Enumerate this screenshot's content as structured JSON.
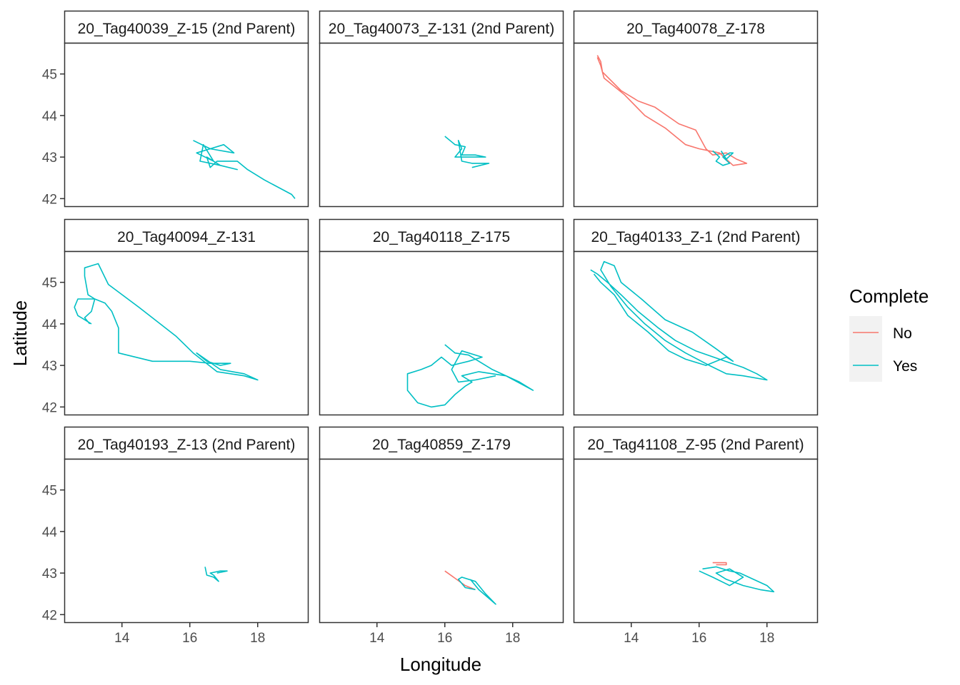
{
  "chart_data": {
    "type": "line",
    "facet_layout": "3x3",
    "xlabel": "Longitude",
    "ylabel": "Latitude",
    "xlim": [
      12.3,
      19.5
    ],
    "ylim": [
      41.8,
      45.75
    ],
    "x_ticks": [
      14,
      16,
      18
    ],
    "y_ticks": [
      42,
      43,
      44,
      45
    ],
    "grid": false,
    "legend": {
      "title": "Complete",
      "placement": "right",
      "entries": [
        {
          "label": "No",
          "color": "#F8766D"
        },
        {
          "label": "Yes",
          "color": "#00BFC4"
        }
      ]
    },
    "panels": [
      {
        "title": "20_Tag40039_Z-15 (2nd Parent)",
        "series": [
          {
            "name": "Yes",
            "points": [
              [
                16.1,
                43.4
              ],
              [
                16.6,
                43.2
              ],
              [
                17.0,
                43.3
              ],
              [
                17.3,
                43.1
              ],
              [
                16.6,
                43.2
              ],
              [
                16.2,
                43.1
              ],
              [
                16.7,
                42.9
              ],
              [
                16.4,
                43.3
              ],
              [
                16.3,
                42.9
              ],
              [
                16.9,
                42.8
              ],
              [
                17.4,
                42.7
              ],
              [
                16.9,
                42.8
              ],
              [
                16.5,
                43.0
              ],
              [
                16.6,
                42.75
              ],
              [
                16.8,
                42.9
              ],
              [
                17.4,
                42.9
              ],
              [
                17.7,
                42.7
              ],
              [
                18.2,
                42.45
              ],
              [
                19.0,
                42.1
              ],
              [
                19.1,
                42.0
              ]
            ]
          }
        ]
      },
      {
        "title": "20_Tag40073_Z-131 (2nd Parent)",
        "series": [
          {
            "name": "Yes",
            "points": [
              [
                16.0,
                43.5
              ],
              [
                16.3,
                43.3
              ],
              [
                16.6,
                43.25
              ],
              [
                16.5,
                43.05
              ],
              [
                16.9,
                43.05
              ],
              [
                17.2,
                43.0
              ],
              [
                16.7,
                43.0
              ],
              [
                16.3,
                43.0
              ],
              [
                16.5,
                43.2
              ],
              [
                16.4,
                43.4
              ],
              [
                16.5,
                42.9
              ],
              [
                16.8,
                42.85
              ],
              [
                17.0,
                42.85
              ],
              [
                17.3,
                42.85
              ],
              [
                16.8,
                42.75
              ]
            ]
          }
        ]
      },
      {
        "title": "20_Tag40078_Z-178",
        "series": [
          {
            "name": "No",
            "points": [
              [
                13.0,
                45.45
              ],
              [
                13.1,
                45.3
              ],
              [
                13.15,
                45.05
              ],
              [
                13.7,
                44.6
              ],
              [
                14.2,
                44.35
              ],
              [
                14.7,
                44.2
              ],
              [
                15.4,
                43.8
              ],
              [
                15.9,
                43.65
              ],
              [
                16.2,
                43.2
              ],
              [
                16.4,
                43.05
              ],
              [
                16.8,
                43.1
              ],
              [
                17.1,
                42.95
              ],
              [
                17.4,
                42.85
              ],
              [
                17.0,
                42.8
              ],
              [
                16.6,
                43.1
              ],
              [
                16.0,
                43.2
              ],
              [
                15.6,
                43.3
              ],
              [
                15.0,
                43.7
              ],
              [
                14.4,
                44.0
              ],
              [
                13.8,
                44.5
              ],
              [
                13.2,
                44.9
              ],
              [
                13.1,
                45.2
              ],
              [
                13.0,
                45.4
              ]
            ]
          },
          {
            "name": "Yes",
            "points": [
              [
                16.4,
                43.15
              ],
              [
                16.6,
                43.0
              ],
              [
                16.5,
                42.9
              ],
              [
                16.7,
                42.8
              ],
              [
                16.9,
                42.85
              ],
              [
                16.7,
                43.0
              ],
              [
                16.9,
                43.1
              ],
              [
                17.0,
                43.1
              ],
              [
                16.8,
                42.95
              ],
              [
                16.65,
                43.15
              ]
            ]
          }
        ]
      },
      {
        "title": "20_Tag40094_Z-131",
        "series": [
          {
            "name": "Yes",
            "points": [
              [
                13.1,
                44.0
              ],
              [
                12.9,
                44.1
              ],
              [
                12.7,
                44.2
              ],
              [
                12.6,
                44.4
              ],
              [
                12.7,
                44.6
              ],
              [
                13.2,
                44.6
              ],
              [
                13.5,
                44.5
              ],
              [
                13.7,
                44.3
              ],
              [
                13.9,
                43.9
              ],
              [
                13.9,
                43.6
              ],
              [
                13.9,
                43.3
              ],
              [
                14.9,
                43.1
              ],
              [
                16.0,
                43.1
              ],
              [
                16.6,
                43.05
              ],
              [
                17.2,
                43.05
              ],
              [
                16.9,
                43.0
              ],
              [
                16.5,
                43.1
              ],
              [
                16.2,
                43.3
              ],
              [
                16.9,
                42.9
              ],
              [
                17.6,
                42.8
              ],
              [
                18.0,
                42.65
              ],
              [
                17.6,
                42.75
              ],
              [
                16.8,
                42.85
              ],
              [
                16.1,
                43.3
              ],
              [
                15.6,
                43.7
              ],
              [
                14.5,
                44.4
              ],
              [
                13.6,
                44.95
              ],
              [
                13.3,
                45.45
              ],
              [
                12.9,
                45.35
              ],
              [
                12.9,
                45.15
              ],
              [
                13.0,
                44.7
              ],
              [
                13.2,
                44.6
              ],
              [
                13.1,
                44.3
              ],
              [
                12.9,
                44.15
              ],
              [
                13.05,
                44.0
              ]
            ]
          }
        ]
      },
      {
        "title": "20_Tag40118_Z-175",
        "series": [
          {
            "name": "Yes",
            "points": [
              [
                16.0,
                43.5
              ],
              [
                16.3,
                43.3
              ],
              [
                16.7,
                43.25
              ],
              [
                17.0,
                43.1
              ],
              [
                17.4,
                42.9
              ],
              [
                18.2,
                42.6
              ],
              [
                18.6,
                42.4
              ],
              [
                17.8,
                42.75
              ],
              [
                17.0,
                42.85
              ],
              [
                16.5,
                42.75
              ],
              [
                16.8,
                42.6
              ],
              [
                16.6,
                42.5
              ],
              [
                16.3,
                42.3
              ],
              [
                16.0,
                42.05
              ],
              [
                15.6,
                42.0
              ],
              [
                15.2,
                42.1
              ],
              [
                14.9,
                42.4
              ],
              [
                14.9,
                42.8
              ],
              [
                15.3,
                42.9
              ],
              [
                15.6,
                43.0
              ],
              [
                15.9,
                43.2
              ],
              [
                16.2,
                43.0
              ],
              [
                16.7,
                43.1
              ],
              [
                17.1,
                43.2
              ],
              [
                16.5,
                43.35
              ],
              [
                16.2,
                42.9
              ],
              [
                16.4,
                42.6
              ],
              [
                16.9,
                42.65
              ],
              [
                17.5,
                42.75
              ]
            ]
          }
        ]
      },
      {
        "title": "20_Tag40133_Z-1 (2nd Parent)",
        "series": [
          {
            "name": "Yes",
            "points": [
              [
                12.8,
                45.3
              ],
              [
                13.0,
                45.2
              ],
              [
                13.3,
                45.0
              ],
              [
                13.7,
                44.7
              ],
              [
                14.2,
                44.3
              ],
              [
                14.8,
                43.9
              ],
              [
                15.3,
                43.6
              ],
              [
                15.9,
                43.35
              ],
              [
                16.6,
                43.15
              ],
              [
                17.3,
                42.95
              ],
              [
                17.7,
                42.8
              ],
              [
                18.0,
                42.65
              ],
              [
                17.3,
                42.75
              ],
              [
                16.8,
                42.8
              ],
              [
                16.3,
                43.0
              ],
              [
                15.6,
                43.3
              ],
              [
                15.0,
                43.6
              ],
              [
                14.4,
                44.0
              ],
              [
                13.9,
                44.4
              ],
              [
                13.4,
                44.9
              ],
              [
                13.1,
                45.3
              ],
              [
                13.2,
                45.5
              ],
              [
                13.5,
                45.4
              ],
              [
                13.7,
                45.0
              ],
              [
                14.3,
                44.6
              ],
              [
                15.0,
                44.1
              ],
              [
                15.8,
                43.8
              ],
              [
                16.5,
                43.4
              ],
              [
                17.0,
                43.1
              ],
              [
                16.8,
                43.2
              ],
              [
                16.2,
                43.0
              ],
              [
                15.6,
                43.15
              ],
              [
                15.1,
                43.35
              ],
              [
                14.5,
                43.8
              ],
              [
                13.9,
                44.2
              ],
              [
                13.5,
                44.7
              ],
              [
                13.1,
                45.0
              ],
              [
                12.9,
                45.2
              ]
            ]
          }
        ]
      },
      {
        "title": "20_Tag40193_Z-13 (2nd Parent)",
        "series": [
          {
            "name": "Yes",
            "points": [
              [
                16.45,
                43.15
              ],
              [
                16.5,
                42.95
              ],
              [
                16.7,
                42.9
              ],
              [
                16.85,
                42.8
              ],
              [
                16.7,
                42.95
              ],
              [
                16.6,
                43.0
              ],
              [
                16.9,
                43.05
              ],
              [
                17.1,
                43.05
              ],
              [
                16.8,
                43.0
              ]
            ]
          }
        ]
      },
      {
        "title": "20_Tag40859_Z-179",
        "series": [
          {
            "name": "No",
            "points": [
              [
                16.0,
                43.05
              ],
              [
                16.6,
                42.7
              ],
              [
                16.9,
                42.6
              ]
            ]
          },
          {
            "name": "Yes",
            "points": [
              [
                16.9,
                42.6
              ],
              [
                16.6,
                42.65
              ],
              [
                16.4,
                42.85
              ],
              [
                16.5,
                42.9
              ],
              [
                16.9,
                42.8
              ],
              [
                17.2,
                42.5
              ],
              [
                17.5,
                42.25
              ],
              [
                17.0,
                42.6
              ],
              [
                16.75,
                42.85
              ]
            ]
          }
        ]
      },
      {
        "title": "20_Tag41108_Z-95 (2nd Parent)",
        "series": [
          {
            "name": "No",
            "points": [
              [
                16.4,
                43.25
              ],
              [
                16.8,
                43.25
              ],
              [
                16.8,
                43.2
              ],
              [
                16.5,
                43.2
              ]
            ]
          },
          {
            "name": "Yes",
            "points": [
              [
                16.1,
                43.1
              ],
              [
                16.5,
                43.15
              ],
              [
                16.9,
                43.05
              ],
              [
                17.2,
                43.0
              ],
              [
                17.6,
                42.85
              ],
              [
                18.0,
                42.7
              ],
              [
                18.2,
                42.55
              ],
              [
                17.8,
                42.6
              ],
              [
                17.3,
                42.7
              ],
              [
                16.8,
                42.85
              ],
              [
                16.5,
                43.0
              ],
              [
                16.9,
                43.1
              ],
              [
                17.3,
                42.9
              ],
              [
                16.9,
                42.7
              ],
              [
                16.4,
                42.9
              ],
              [
                16.0,
                43.05
              ]
            ]
          }
        ]
      }
    ]
  }
}
